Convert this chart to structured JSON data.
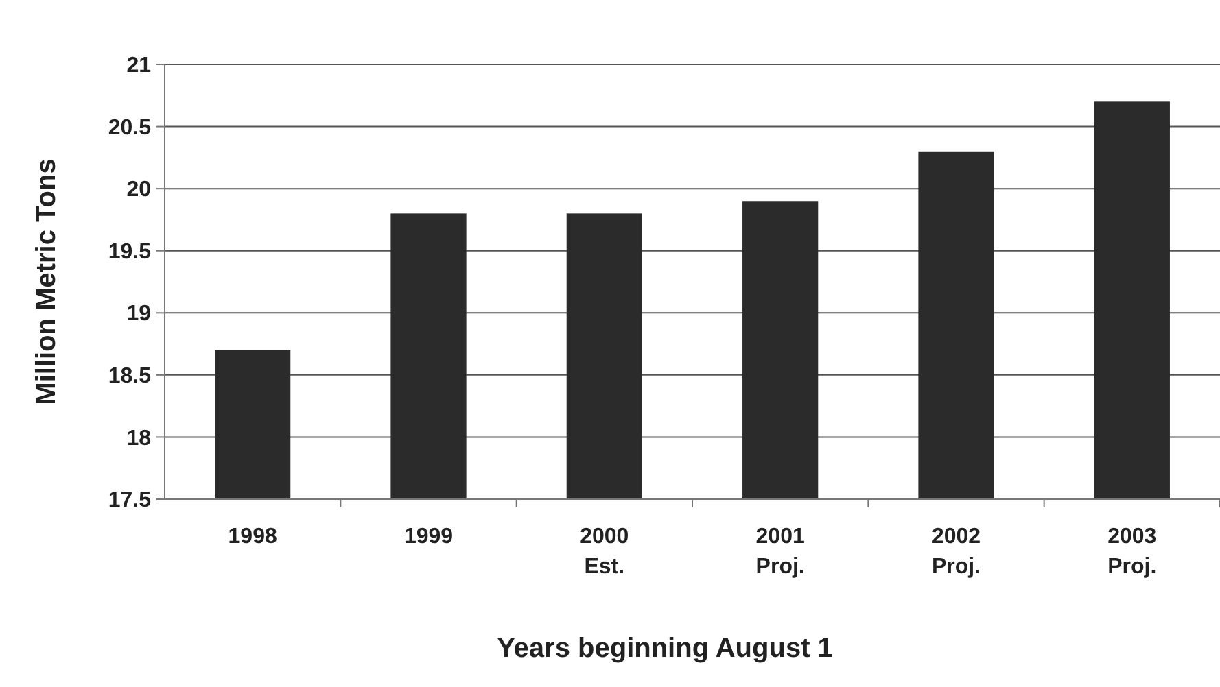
{
  "chart_data": {
    "type": "bar",
    "xlabel": "Years beginning August 1",
    "ylabel": "Million Metric Tons",
    "categories": [
      "1998",
      "1999",
      "2000\nEst.",
      "2001\nProj.",
      "2002\nProj.",
      "2003\nProj."
    ],
    "values": [
      18.7,
      19.8,
      19.8,
      19.9,
      20.3,
      20.7
    ],
    "color": "#2b2b2b",
    "ylim": [
      17.5,
      21
    ],
    "yticks": [
      17.5,
      18,
      18.5,
      19,
      19.5,
      20,
      20.5,
      21
    ],
    "grid": "y"
  }
}
